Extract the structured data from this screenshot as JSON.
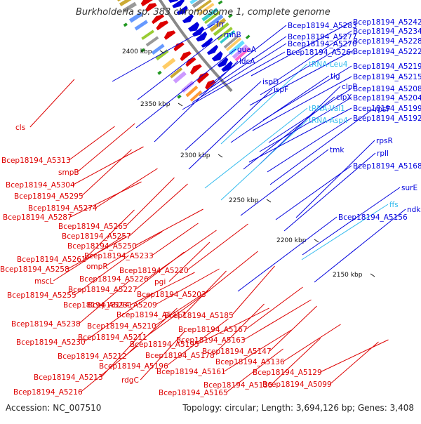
{
  "title": "Burkholderia sp. 383 chromosome 1, complete genome",
  "footer": {
    "accession": "Accession: NC_007510",
    "summary": "Topology: circular; Length: 3,694,126 bp; Genes: 3,408"
  },
  "colors": {
    "forward": "#0000dd",
    "reverse": "#dd0000",
    "rna": "#33bbee",
    "backbone": "#888888"
  },
  "ticks": [
    {
      "label": "2400 kbp"
    },
    {
      "label": "2350 kbp"
    },
    {
      "label": "2300 kbp"
    },
    {
      "label": "2250 kbp"
    },
    {
      "label": "2200 kbp"
    },
    {
      "label": "2150 kbp"
    }
  ],
  "forward_labels": [
    "frr",
    "rnhB",
    "guaA",
    "ldcA",
    "ispD",
    "ispF",
    "tig",
    "clpP",
    "clpX",
    "tRNA-Leu4",
    "tRNA-Val1",
    "tRNA-Asp4",
    "tmk",
    "rpsF",
    "rpsR",
    "rplI",
    "surE",
    "ffs",
    "ndk",
    "Bcep18194_A5283",
    "Bcep18194_A5277",
    "Bcep18194_A5270",
    "Bcep18194_A5264",
    "Bcep18194_A5242",
    "Bcep18194_A5234",
    "Bcep18194_A5228",
    "Bcep18194_A5222",
    "Bcep18194_A5219",
    "Bcep18194_A5215",
    "Bcep18194_A5208",
    "Bcep18194_A5204",
    "Bcep18194_A5199",
    "Bcep18194_A5192",
    "Bcep18194_A5168",
    "Bcep18194_A5156"
  ],
  "reverse_labels": [
    "cls",
    "Bcep18194_A5313",
    "smpB",
    "Bcep18194_A5304",
    "Bcep18194_A5295",
    "Bcep18194_A5274",
    "Bcep18194_A5287",
    "Bcep18194_A5265",
    "Bcep18194_A5257",
    "Bcep18194_A5250",
    "Bcep18194_A5233",
    "Bcep18194_A5261",
    "ompR",
    "Bcep18194_A5258",
    "Bcep18194_A5220",
    "mscL",
    "Bcep18194_A5226",
    "Bcep18194_A5227",
    "pgi",
    "Bcep18194_A5255",
    "Bcep18194_A5203",
    "Bcep18194_A5231",
    "Bcep18194_A5209",
    "Bcep18194_A5217",
    "Bcep18194_A5185",
    "Bcep18194_A5238",
    "Bcep18194_A5210",
    "Bcep18194_A5167",
    "Bcep18194_A5211",
    "Bcep18194_A5163",
    "Bcep18194_A5230",
    "Bcep18194_A5195",
    "Bcep18194_A5147",
    "Bcep18194_A5212",
    "Bcep18194_A5178",
    "Bcep18194_A5196",
    "Bcep18194_A5136",
    "Bcep18194_A5213",
    "Bcep18194_A5161",
    "rdgC",
    "Bcep18194_A5129",
    "Bcep18194_A5135",
    "Bcep18194_A5099",
    "Bcep18194_A5216",
    "Bcep18194_A5165"
  ]
}
